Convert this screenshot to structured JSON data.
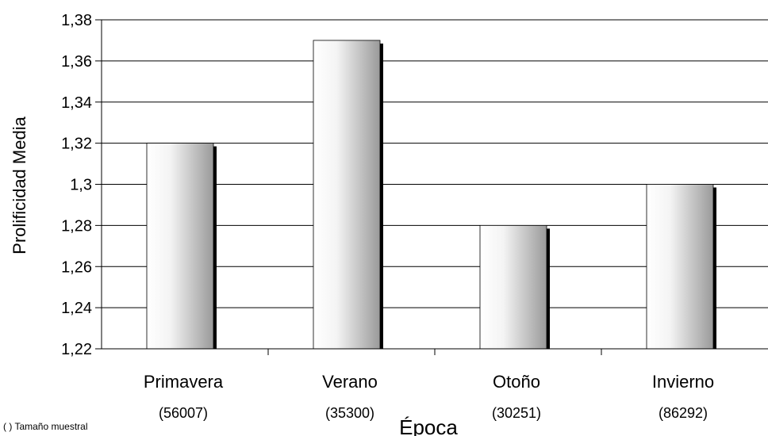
{
  "chart_data": {
    "type": "bar",
    "categories": [
      "Primavera",
      "Verano",
      "Otoño",
      "Invierno"
    ],
    "category_counts": [
      "(56007)",
      "(35300)",
      "(30251)",
      "(86292)"
    ],
    "values": [
      1.32,
      1.37,
      1.28,
      1.3
    ],
    "xlabel": "Época",
    "ylabel": "Prolificidad Media",
    "ylim": [
      1.22,
      1.38
    ],
    "yticks": [
      1.22,
      1.24,
      1.26,
      1.28,
      1.3,
      1.32,
      1.34,
      1.36,
      1.38
    ],
    "ytick_labels": [
      "1,22",
      "1,24",
      "1,26",
      "1,28",
      "1,3",
      "1,32",
      "1,34",
      "1,36",
      "1,38"
    ],
    "grid": true,
    "legend": "none",
    "note": "( ) Tamaño muestral",
    "colors": {
      "bar_light": "#ffffff",
      "bar_dark": "#9a9a9a",
      "shadow": "#000000",
      "grid": "#000000"
    }
  }
}
